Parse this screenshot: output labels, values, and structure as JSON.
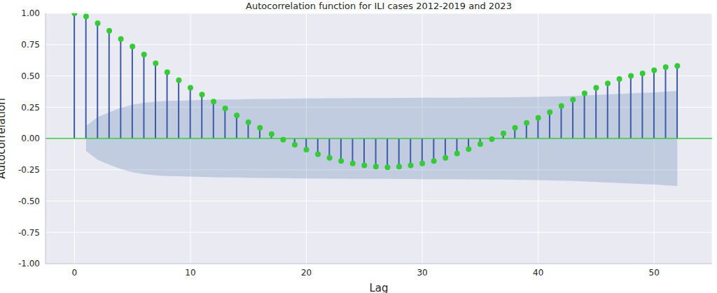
{
  "chart_data": {
    "type": "stem",
    "title": "Autocorrelation function for ILI cases 2012-2019 and 2023",
    "x_label": "Lag",
    "y_label": "Autocorrelation",
    "x": [
      0,
      1,
      2,
      3,
      4,
      5,
      6,
      7,
      8,
      9,
      10,
      11,
      12,
      13,
      14,
      15,
      16,
      17,
      18,
      19,
      20,
      21,
      22,
      23,
      24,
      25,
      26,
      27,
      28,
      29,
      30,
      31,
      32,
      33,
      34,
      35,
      36,
      37,
      38,
      39,
      40,
      41,
      42,
      43,
      44,
      45,
      46,
      47,
      48,
      49,
      50,
      51,
      52
    ],
    "values": [
      1.0,
      0.975,
      0.92,
      0.86,
      0.795,
      0.735,
      0.67,
      0.6,
      0.53,
      0.465,
      0.405,
      0.35,
      0.295,
      0.24,
      0.185,
      0.13,
      0.085,
      0.035,
      -0.01,
      -0.05,
      -0.09,
      -0.125,
      -0.155,
      -0.18,
      -0.2,
      -0.215,
      -0.225,
      -0.23,
      -0.225,
      -0.215,
      -0.2,
      -0.18,
      -0.155,
      -0.12,
      -0.085,
      -0.045,
      -0.005,
      0.04,
      0.085,
      0.125,
      0.165,
      0.21,
      0.26,
      0.31,
      0.36,
      0.405,
      0.44,
      0.475,
      0.5,
      0.52,
      0.545,
      0.57,
      0.58
    ],
    "confidence_interval": [
      null,
      0.1,
      0.17,
      0.21,
      0.245,
      0.27,
      0.285,
      0.295,
      0.3,
      0.302,
      0.305,
      0.307,
      0.31,
      0.311,
      0.312,
      0.314,
      0.315,
      0.316,
      0.317,
      0.318,
      0.32,
      0.32,
      0.321,
      0.321,
      0.322,
      0.322,
      0.323,
      0.323,
      0.324,
      0.324,
      0.325,
      0.325,
      0.326,
      0.326,
      0.327,
      0.327,
      0.328,
      0.328,
      0.329,
      0.331,
      0.333,
      0.335,
      0.337,
      0.34,
      0.344,
      0.348,
      0.352,
      0.356,
      0.36,
      0.364,
      0.368,
      0.374,
      0.38
    ],
    "hline": 0,
    "color": "#3b5ba9",
    "marker_color": "#32cd32",
    "band_color": "#4c72b0",
    "marker": "circle",
    "xlim": [
      -2.5,
      55
    ],
    "xticks": [
      0,
      10,
      20,
      30,
      40,
      50
    ],
    "ylim": [
      -1,
      1
    ],
    "yticks": [
      {
        "value": -1,
        "label": "-1.00"
      },
      {
        "value": -0.75,
        "label": "-0.75"
      },
      {
        "value": -0.5,
        "label": "-0.50"
      },
      {
        "value": -0.25,
        "label": "-0.25"
      },
      {
        "value": 0,
        "label": "0.00"
      },
      {
        "value": 0.25,
        "label": "0.25"
      },
      {
        "value": 0.5,
        "label": "0.50"
      },
      {
        "value": 0.75,
        "label": "0.75"
      },
      {
        "value": 1,
        "label": "1.00"
      }
    ],
    "grid": true
  }
}
